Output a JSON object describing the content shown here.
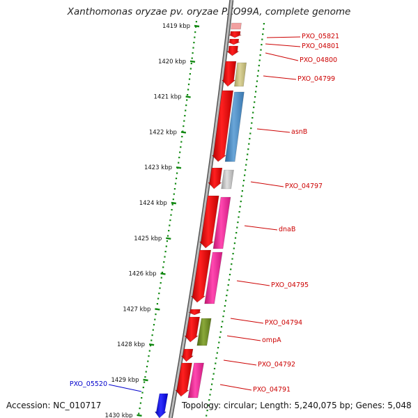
{
  "title": "Xanthomonas oryzae pv. oryzae PXO99A, complete genome",
  "accession": "Accession: NC_010717",
  "summary": "Topology: circular; Length: 5,240,075 bp; Genes: 5,048",
  "kbp_ticks": [
    {
      "label": "1419 kbp"
    },
    {
      "label": "1420 kbp"
    },
    {
      "label": "1421 kbp"
    },
    {
      "label": "1422 kbp"
    },
    {
      "label": "1423 kbp"
    },
    {
      "label": "1424 kbp"
    },
    {
      "label": "1425 kbp"
    },
    {
      "label": "1426 kbp"
    },
    {
      "label": "1427 kbp"
    },
    {
      "label": "1428 kbp"
    },
    {
      "label": "1429 kbp"
    },
    {
      "label": "1430 kbp"
    }
  ],
  "gene_labels": [
    {
      "name": "PXO_05821",
      "color": "#cc0000"
    },
    {
      "name": "PXO_04801",
      "color": "#cc0000"
    },
    {
      "name": "PXO_04800",
      "color": "#cc0000"
    },
    {
      "name": "PXO_04799",
      "color": "#cc0000"
    },
    {
      "name": "asnB",
      "color": "#cc0000"
    },
    {
      "name": "PXO_04797",
      "color": "#cc0000"
    },
    {
      "name": "dnaB",
      "color": "#cc0000"
    },
    {
      "name": "PXO_04795",
      "color": "#cc0000"
    },
    {
      "name": "PXO_04794",
      "color": "#cc0000"
    },
    {
      "name": "ompA",
      "color": "#cc0000"
    },
    {
      "name": "PXO_04792",
      "color": "#cc0000"
    },
    {
      "name": "PXO_04791",
      "color": "#cc0000"
    },
    {
      "name": "PXO_05520",
      "color": "#0000cc"
    }
  ],
  "colors": {
    "cds_red": "#ee1111",
    "khaki": "#c8c080",
    "steel_blue": "#4d8cc4",
    "gray": "#c0c0c0",
    "pink": "#ff2d9e",
    "olive": "#6e8a24",
    "blue": "#1010ee",
    "tick_green": "#118811"
  }
}
